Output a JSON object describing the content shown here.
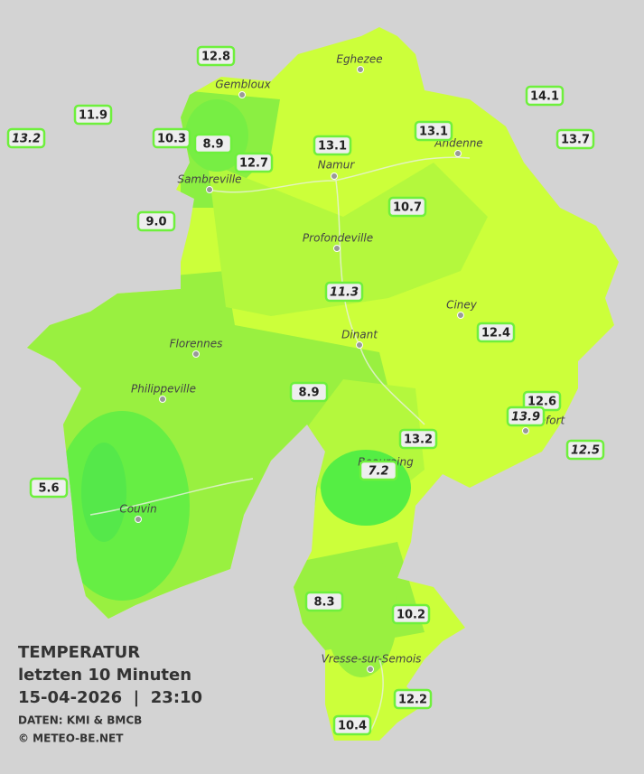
{
  "header": {
    "title": "TEMPERATUR",
    "period": "letzten 10 Minuten",
    "datetime": "15-04-2026  |  23:10",
    "source": "DATEN: KMI & BMCB",
    "copyright": "© METEO-BE.NET"
  },
  "towns": [
    "Eghezee",
    "Gembloux",
    "Andenne",
    "Namur",
    "Sambreville",
    "Profondeville",
    "Ciney",
    "Dinant",
    "Florennes",
    "Philippeville",
    "Rochefort",
    "Beauraing",
    "Couvin",
    "Vresse-sur-Semois"
  ],
  "stations": [
    {
      "value": "12.8",
      "italic": false
    },
    {
      "value": "11.9",
      "italic": false
    },
    {
      "value": "13.2",
      "italic": true
    },
    {
      "value": "10.3",
      "italic": false
    },
    {
      "value": "8.9",
      "italic": false
    },
    {
      "value": "12.7",
      "italic": false
    },
    {
      "value": "13.1",
      "italic": false
    },
    {
      "value": "13.1",
      "italic": false
    },
    {
      "value": "14.1",
      "italic": false
    },
    {
      "value": "13.7",
      "italic": false
    },
    {
      "value": "9.0",
      "italic": false
    },
    {
      "value": "10.7",
      "italic": false
    },
    {
      "value": "11.3",
      "italic": true
    },
    {
      "value": "12.4",
      "italic": false
    },
    {
      "value": "8.9",
      "italic": false
    },
    {
      "value": "12.6",
      "italic": false
    },
    {
      "value": "13.9",
      "italic": true
    },
    {
      "value": "12.5",
      "italic": true
    },
    {
      "value": "13.2",
      "italic": false
    },
    {
      "value": "7.2",
      "italic": true
    },
    {
      "value": "5.6",
      "italic": false
    },
    {
      "value": "8.3",
      "italic": false
    },
    {
      "value": "10.2",
      "italic": false
    },
    {
      "value": "12.2",
      "italic": false
    },
    {
      "value": "10.4",
      "italic": false
    }
  ]
}
